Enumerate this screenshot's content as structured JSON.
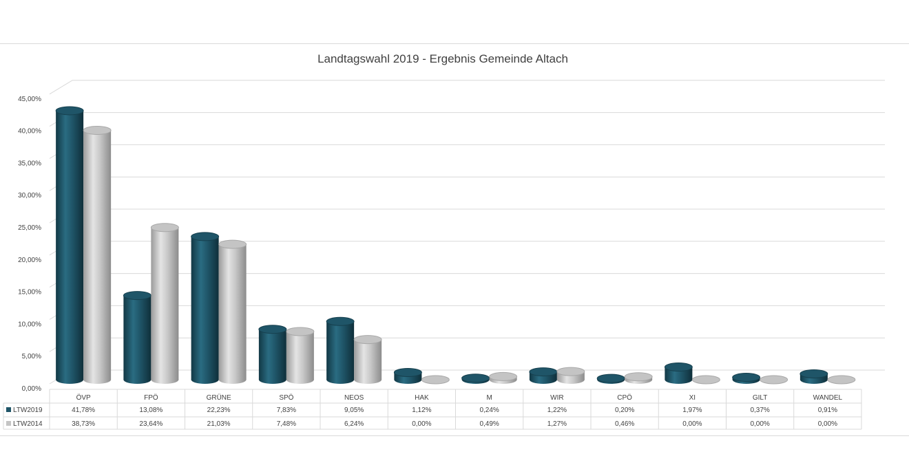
{
  "chart_data": {
    "type": "bar",
    "title": "Landtagswahl 2019 - Ergebnis Gemeinde Altach",
    "categories": [
      "ÖVP",
      "FPÖ",
      "GRÜNE",
      "SPÖ",
      "NEOS",
      "HAK",
      "M",
      "WIR",
      "CPÖ",
      "XI",
      "GILT",
      "WANDEL"
    ],
    "series": [
      {
        "name": "LTW2019",
        "color": "#1f5568",
        "values": [
          41.78,
          13.08,
          22.23,
          7.83,
          9.05,
          1.12,
          0.24,
          1.22,
          0.2,
          1.97,
          0.37,
          0.91
        ],
        "labels": [
          "41,78%",
          "13,08%",
          "22,23%",
          "7,83%",
          "9,05%",
          "1,12%",
          "0,24%",
          "1,22%",
          "0,20%",
          "1,97%",
          "0,37%",
          "0,91%"
        ]
      },
      {
        "name": "LTW2014",
        "color": "#c4c4c4",
        "values": [
          38.73,
          23.64,
          21.03,
          7.48,
          6.24,
          0.0,
          0.49,
          1.27,
          0.46,
          0.0,
          0.0,
          0.0
        ],
        "labels": [
          "38,73%",
          "23,64%",
          "21,03%",
          "7,48%",
          "6,24%",
          "0,00%",
          "0,49%",
          "1,27%",
          "0,46%",
          "0,00%",
          "0,00%",
          "0,00%"
        ]
      }
    ],
    "yticks": [
      "0,00%",
      "5,00%",
      "10,00%",
      "15,00%",
      "20,00%",
      "25,00%",
      "30,00%",
      "35,00%",
      "40,00%",
      "45,00%"
    ],
    "ylim": [
      0,
      45
    ],
    "grid": true,
    "legend": "data-table"
  }
}
